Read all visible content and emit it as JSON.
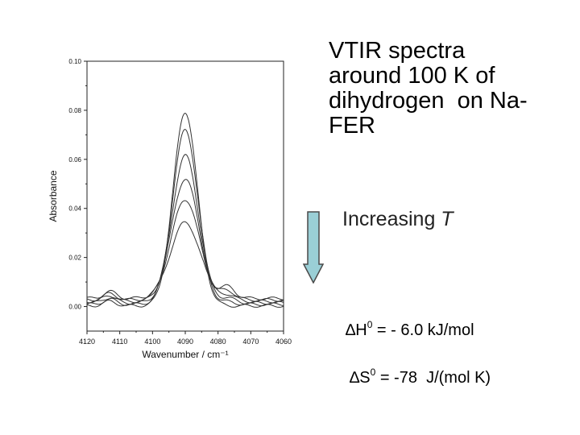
{
  "title_lines": [
    "VTIR spectra",
    "around 100 K of",
    "dihydrogen  on Na-",
    "FER"
  ],
  "trend": {
    "prefix": "Increasing ",
    "variable": "T"
  },
  "thermo": [
    {
      "symbol": "∆H",
      "sup": "0",
      "rest": " = - 6.0 kJ/mol"
    },
    {
      "symbol": "∆S",
      "sup": "0",
      "rest": " = -78  J/(mol K)"
    }
  ],
  "colors": {
    "arrow_fill": "#9acfd6",
    "arrow_stroke": "#4a4a4a",
    "line": "#333333"
  },
  "chart_data": {
    "type": "line",
    "xlabel": "Wavenumber / cm⁻¹",
    "ylabel": "Absorbance",
    "xlim": [
      4120,
      4060
    ],
    "ylim": [
      -0.01,
      0.1
    ],
    "x_ticks": [
      "4120",
      "4110",
      "4100",
      "4090",
      "4080",
      "4070",
      "4060"
    ],
    "y_ticks": [
      "0.00",
      "0.02",
      "0.04",
      "0.06",
      "0.08",
      "0.10"
    ],
    "grid": false,
    "peak_position": 4090,
    "series": [
      {
        "peak": 0.079
      },
      {
        "peak": 0.071
      },
      {
        "peak": 0.06
      },
      {
        "peak": 0.05
      },
      {
        "peak": 0.041
      },
      {
        "peak": 0.031
      }
    ]
  }
}
